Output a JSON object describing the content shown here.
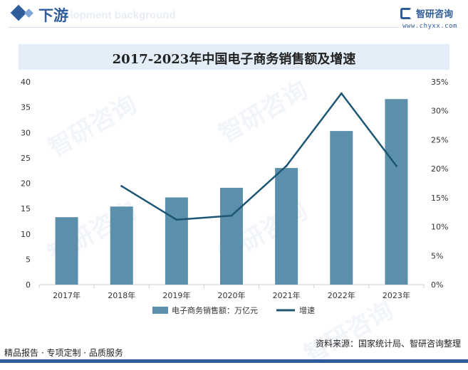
{
  "header": {
    "title": "下游",
    "ghost_text": "elopment background"
  },
  "logo": {
    "name": "智研咨询",
    "url": "www.chyxx.com"
  },
  "footer": {
    "left_text": "精品报告 · 专项定制 · 品质服务",
    "source": "资料来源：国家统计局、智研咨询整理"
  },
  "watermark_text": "智研咨询",
  "chart_data": {
    "type": "bar",
    "title": "2017-2023年中国电子商务销售额及增速",
    "categories": [
      "2017年",
      "2018年",
      "2019年",
      "2020年",
      "2021年",
      "2022年",
      "2023年"
    ],
    "series": [
      {
        "name": "电子商务销售额：万亿元",
        "type": "bar",
        "axis": "left",
        "values": [
          13.3,
          15.4,
          17.2,
          19.1,
          23.0,
          30.3,
          36.6
        ],
        "color": "#5b8fab"
      },
      {
        "name": "增速",
        "type": "line",
        "axis": "right",
        "values": [
          null,
          17.0,
          11.2,
          11.9,
          20.5,
          33.0,
          20.5
        ],
        "unit": "%",
        "color": "#1d5673"
      }
    ],
    "y_left": {
      "ylim": [
        0,
        40
      ],
      "ticks": [
        "0",
        "5",
        "10",
        "15",
        "20",
        "25",
        "30",
        "35",
        "40"
      ]
    },
    "y_right": {
      "ylim": [
        0,
        35
      ],
      "ticks": [
        "0%",
        "5%",
        "10%",
        "15%",
        "20%",
        "25%",
        "30%",
        "35%"
      ]
    },
    "legend_position": "bottom-center",
    "grid": false
  }
}
